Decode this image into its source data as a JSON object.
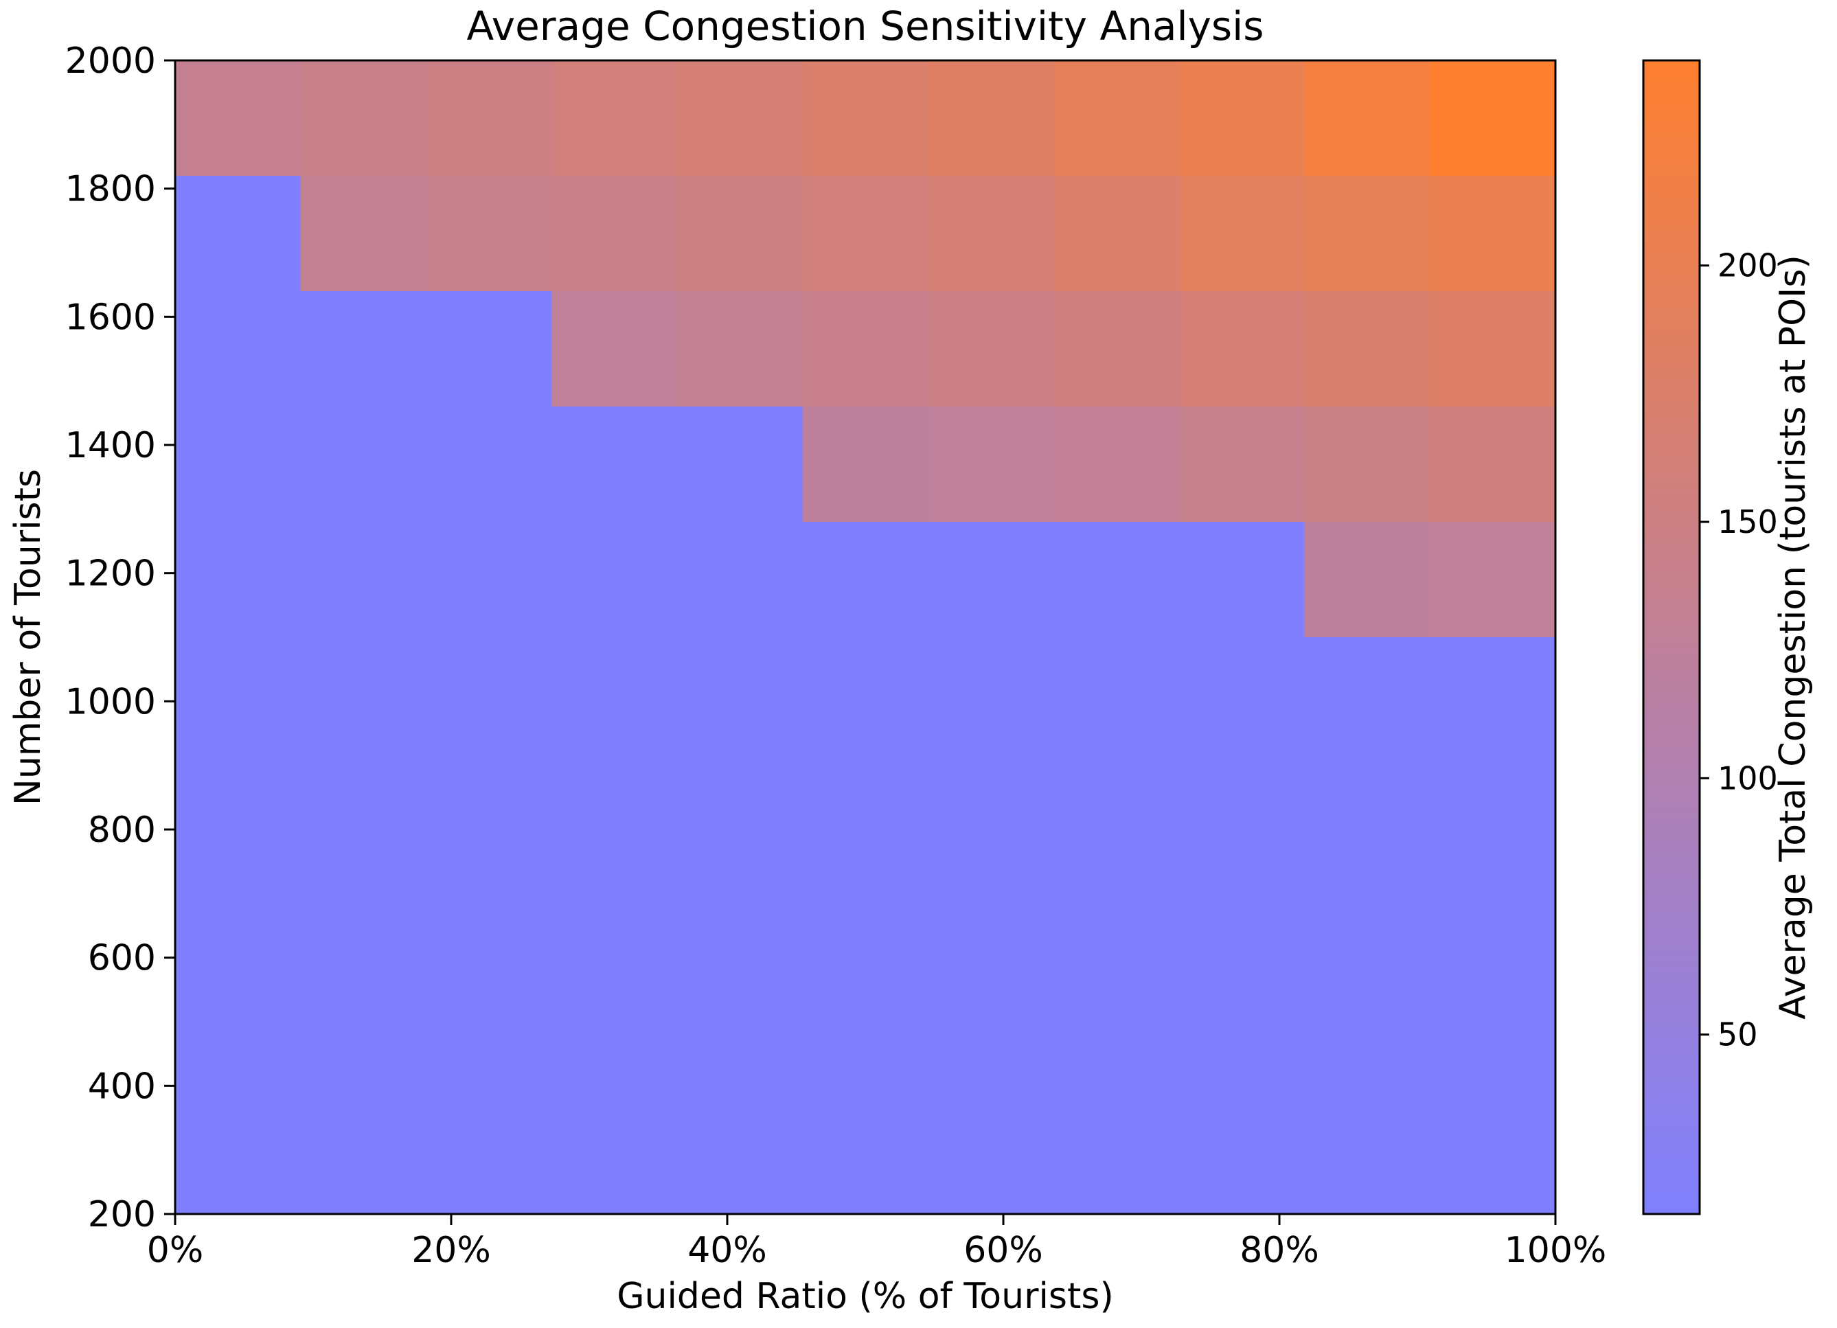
{
  "chart_data": {
    "type": "heatmap",
    "title": "Average Congestion Sensitivity Analysis",
    "xlabel": "Guided Ratio (% of Tourists)",
    "ylabel": "Number of Tourists",
    "colorbar_label": "Average Total Congestion (tourists at POIs)",
    "x_ticks": [
      "0%",
      "20%",
      "40%",
      "60%",
      "80%",
      "100%"
    ],
    "x_tick_values": [
      0,
      20,
      40,
      60,
      80,
      100
    ],
    "y_ticks": [
      "200",
      "400",
      "600",
      "800",
      "1000",
      "1200",
      "1400",
      "1600",
      "1800",
      "2000"
    ],
    "y_tick_values": [
      200,
      400,
      600,
      800,
      1000,
      1200,
      1400,
      1600,
      1800,
      2000
    ],
    "colorbar_ticks": [
      "50",
      "100",
      "150",
      "200"
    ],
    "colorbar_tick_values": [
      50,
      100,
      150,
      200
    ],
    "xlim": [
      0,
      100
    ],
    "ylim": [
      200,
      2000
    ],
    "color_range": [
      15,
      240
    ],
    "colormap": [
      "#8080ff",
      "#ff8030"
    ],
    "x_edges": [
      0,
      9.09,
      18.18,
      27.27,
      36.36,
      45.45,
      54.55,
      63.64,
      72.73,
      81.82,
      90.91,
      100
    ],
    "y_edges": [
      200,
      2000
    ],
    "rows": [
      {
        "y_range": [
          1820,
          2000
        ],
        "values": [
          135,
          142,
          150,
          158,
          166,
          175,
          184,
          194,
          205,
          222,
          240
        ]
      },
      {
        "y_range": [
          1640,
          1820
        ],
        "values": [
          15,
          132,
          138,
          144,
          150,
          158,
          166,
          175,
          188,
          196,
          205
        ]
      },
      {
        "y_range": [
          1460,
          1640
        ],
        "values": [
          15,
          15,
          15,
          128,
          134,
          140,
          146,
          153,
          164,
          172,
          180
        ]
      },
      {
        "y_range": [
          1280,
          1460
        ],
        "values": [
          15,
          15,
          15,
          15,
          15,
          122,
          126,
          130,
          138,
          145,
          155
        ]
      },
      {
        "y_range": [
          1100,
          1280
        ],
        "values": [
          15,
          15,
          15,
          15,
          15,
          15,
          15,
          15,
          15,
          122,
          128
        ]
      },
      {
        "y_range": [
          200,
          1100
        ],
        "values": [
          15,
          15,
          15,
          15,
          15,
          15,
          15,
          15,
          15,
          15,
          15
        ]
      }
    ]
  }
}
